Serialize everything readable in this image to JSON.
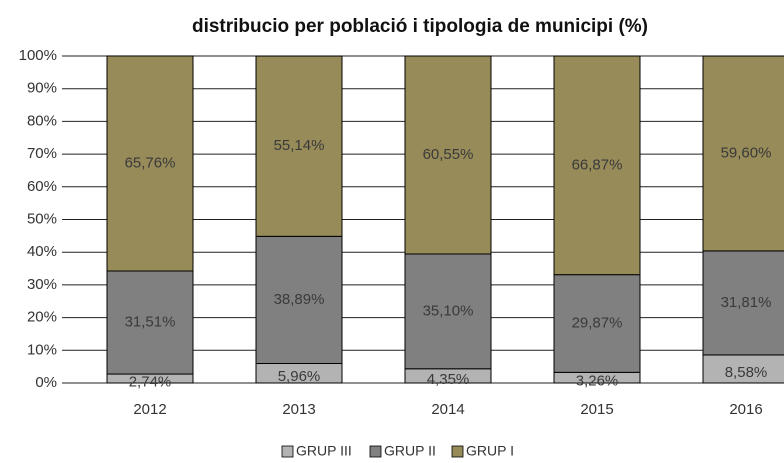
{
  "chart_data": {
    "type": "stacked_bar",
    "title": "distribucio per població i tipologia de municipi (%)",
    "categories": [
      "2012",
      "2013",
      "2014",
      "2015",
      "2016"
    ],
    "series": [
      {
        "name": "GRUP III",
        "color": "#b3b3b3",
        "values": [
          2.74,
          5.96,
          4.35,
          3.26,
          8.58
        ],
        "value_labels": [
          "2,74%",
          "5,96%",
          "4,35%",
          "3,26%",
          "8,58%"
        ]
      },
      {
        "name": "GRUP II",
        "color": "#808080",
        "values": [
          31.51,
          38.89,
          35.1,
          29.87,
          31.81
        ],
        "value_labels": [
          "31,51%",
          "38,89%",
          "35,10%",
          "29,87%",
          "31,81%"
        ]
      },
      {
        "name": "GRUP I",
        "color": "#978b59",
        "values": [
          65.76,
          55.14,
          60.55,
          66.87,
          59.6
        ],
        "value_labels": [
          "65,76%",
          "55,14%",
          "60,55%",
          "66,87%",
          "59,60%"
        ]
      }
    ],
    "ylim": [
      0,
      100
    ],
    "yticks": [
      {
        "value": 0,
        "label": "0%"
      },
      {
        "value": 10,
        "label": "10%"
      },
      {
        "value": 20,
        "label": "20%"
      },
      {
        "value": 30,
        "label": "30%"
      },
      {
        "value": 40,
        "label": "40%"
      },
      {
        "value": 50,
        "label": "50%"
      },
      {
        "value": 60,
        "label": "60%"
      },
      {
        "value": 70,
        "label": "70%"
      },
      {
        "value": 80,
        "label": "80%"
      },
      {
        "value": 90,
        "label": "90%"
      },
      {
        "value": 100,
        "label": "100%"
      }
    ],
    "grid": true,
    "legend": "bottom"
  }
}
